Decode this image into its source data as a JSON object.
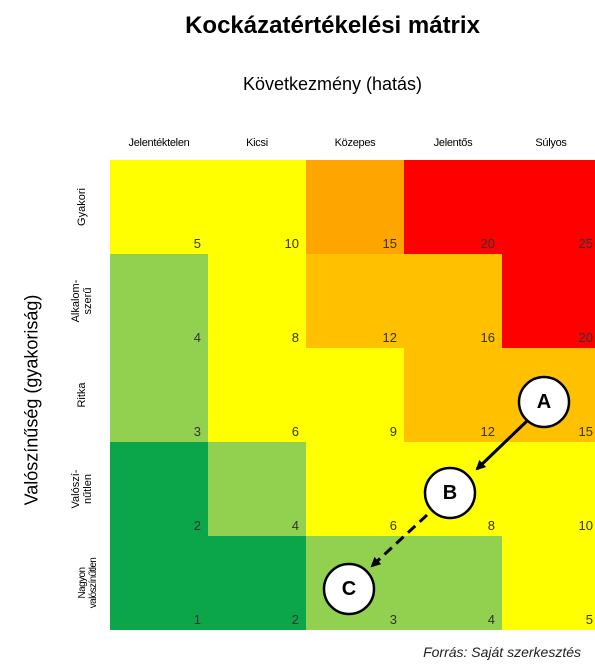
{
  "title": "Kockázatértékelési mátrix",
  "x_axis_title": "Következmény (hatás)",
  "y_axis_title": "Valószínűség (gyakoriság)",
  "columns": [
    "Jelentéktelen",
    "Kicsi",
    "Közepes",
    "Jelentős",
    "Súlyos"
  ],
  "rows": [
    "Gyakori",
    "Alkalom-\nszerű",
    "Ritka",
    "Valószí-\nnűtlen",
    "Nagyon\nvalószínűtlen"
  ],
  "cells": [
    [
      "5",
      "10",
      "15",
      "20",
      "25"
    ],
    [
      "4",
      "8",
      "12",
      "16",
      "20"
    ],
    [
      "3",
      "6",
      "9",
      "12",
      "15"
    ],
    [
      "2",
      "4",
      "6",
      "8",
      "10"
    ],
    [
      "1",
      "2",
      "3",
      "4",
      "5"
    ]
  ],
  "colors": {
    "dark_green": "#0ca64a",
    "light_green": "#92d050",
    "yellow": "#ffff00",
    "orange": "#ffc000",
    "dark_orange": "#ffa500",
    "red": "#ff0000"
  },
  "cell_colors": [
    [
      "yellow",
      "yellow",
      "dark_orange",
      "red",
      "red"
    ],
    [
      "light_green",
      "yellow",
      "orange",
      "orange",
      "red"
    ],
    [
      "light_green",
      "yellow",
      "yellow",
      "orange",
      "orange"
    ],
    [
      "dark_green",
      "light_green",
      "yellow",
      "yellow",
      "yellow"
    ],
    [
      "dark_green",
      "dark_green",
      "light_green",
      "light_green",
      "yellow"
    ]
  ],
  "markers": {
    "a": "A",
    "b": "B",
    "c": "C"
  },
  "source": "Forrás:  Saját szerkesztés"
}
